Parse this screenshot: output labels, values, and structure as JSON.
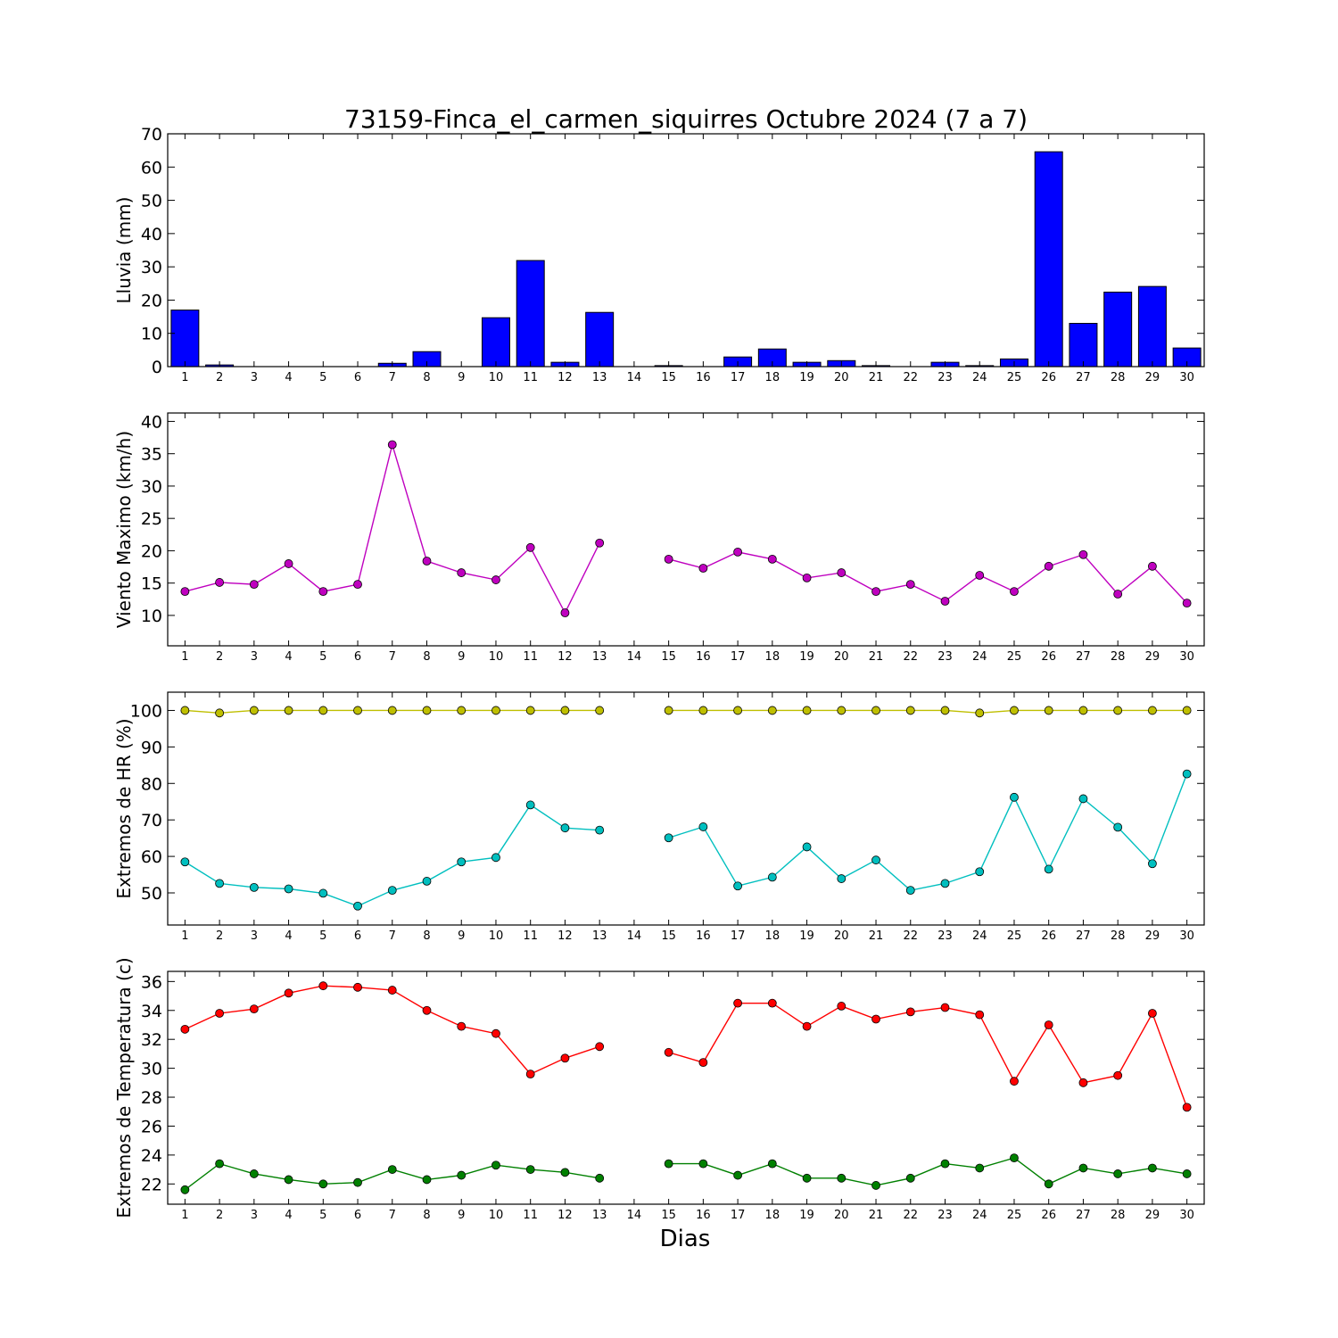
{
  "figure": {
    "title": "73159-Finca_el_carmen_siquirres Octubre 2024  (7 a 7)",
    "xlabel": "Dias"
  },
  "chart_data": [
    {
      "type": "bar",
      "ylabel": "Lluvia (mm)",
      "ylim": [
        0,
        70
      ],
      "yticks": [
        0,
        10,
        20,
        30,
        40,
        50,
        60,
        70
      ],
      "categories": [
        1,
        2,
        3,
        4,
        5,
        6,
        7,
        8,
        9,
        10,
        11,
        12,
        13,
        14,
        15,
        16,
        17,
        18,
        19,
        20,
        21,
        22,
        23,
        24,
        25,
        26,
        27,
        28,
        29,
        30
      ],
      "values": [
        17.0,
        0.5,
        0,
        0,
        0,
        0,
        1.0,
        4.5,
        0,
        14.7,
        31.9,
        1.3,
        16.3,
        0,
        0.3,
        0,
        2.9,
        5.3,
        1.3,
        1.8,
        0.3,
        0,
        1.3,
        0.3,
        2.3,
        64.6,
        13.0,
        22.4,
        24.1,
        5.6
      ],
      "color": "#0000ff",
      "grid": false
    },
    {
      "type": "line",
      "ylabel": "Viento Maximo (km/h)",
      "ylim": [
        5.3,
        41.3
      ],
      "yticks": [
        10,
        15,
        20,
        25,
        30,
        35,
        40
      ],
      "x": [
        1,
        2,
        3,
        4,
        5,
        6,
        7,
        8,
        9,
        10,
        11,
        12,
        13,
        14,
        15,
        16,
        17,
        18,
        19,
        20,
        21,
        22,
        23,
        24,
        25,
        26,
        27,
        28,
        29,
        30
      ],
      "series": [
        {
          "color": "#bf00bf",
          "values": [
            13.7,
            15.1,
            14.8,
            18.0,
            13.7,
            14.8,
            36.4,
            18.4,
            16.6,
            15.5,
            20.5,
            10.4,
            21.2,
            null,
            18.7,
            17.3,
            19.8,
            18.7,
            15.8,
            16.6,
            13.7,
            14.8,
            12.2,
            16.2,
            13.7,
            17.6,
            19.4,
            13.3,
            17.6,
            11.9
          ]
        }
      ]
    },
    {
      "type": "line",
      "ylabel": "Extremos de HR (%)",
      "ylim": [
        41.2,
        105
      ],
      "yticks": [
        50,
        60,
        70,
        80,
        90,
        100
      ],
      "x": [
        1,
        2,
        3,
        4,
        5,
        6,
        7,
        8,
        9,
        10,
        11,
        12,
        13,
        14,
        15,
        16,
        17,
        18,
        19,
        20,
        21,
        22,
        23,
        24,
        25,
        26,
        27,
        28,
        29,
        30
      ],
      "series": [
        {
          "color": "#bfbf00",
          "values": [
            100,
            99.3,
            100,
            100,
            100,
            100,
            100,
            100,
            100,
            100,
            100,
            100,
            100,
            null,
            100,
            100,
            100,
            100,
            100,
            100,
            100,
            100,
            100,
            99.3,
            100,
            100,
            100,
            100,
            100,
            100
          ]
        },
        {
          "color": "#00bfbf",
          "values": [
            58.5,
            52.6,
            51.5,
            51.1,
            49.9,
            46.4,
            50.7,
            53.2,
            58.5,
            59.7,
            74.1,
            67.8,
            67.2,
            null,
            65.1,
            68.1,
            51.9,
            54.3,
            62.6,
            53.9,
            59.0,
            50.7,
            52.6,
            55.8,
            76.2,
            56.5,
            75.8,
            68.0,
            58.0,
            82.6
          ]
        }
      ]
    },
    {
      "type": "line",
      "ylabel": "Extremos de Temperatura (c)",
      "ylim": [
        20.6,
        36.7
      ],
      "yticks": [
        22,
        24,
        26,
        28,
        30,
        32,
        34,
        36
      ],
      "x": [
        1,
        2,
        3,
        4,
        5,
        6,
        7,
        8,
        9,
        10,
        11,
        12,
        13,
        14,
        15,
        16,
        17,
        18,
        19,
        20,
        21,
        22,
        23,
        24,
        25,
        26,
        27,
        28,
        29,
        30
      ],
      "series": [
        {
          "color": "#ff0000",
          "values": [
            32.7,
            33.8,
            34.1,
            35.2,
            35.7,
            35.6,
            35.4,
            34.0,
            32.9,
            32.4,
            29.6,
            30.7,
            31.5,
            null,
            31.1,
            30.4,
            34.5,
            34.5,
            32.9,
            34.3,
            33.4,
            33.9,
            34.2,
            33.7,
            29.1,
            33.0,
            29.0,
            29.5,
            33.8,
            27.3
          ]
        },
        {
          "color": "#008000",
          "values": [
            21.6,
            23.4,
            22.7,
            22.3,
            22.0,
            22.1,
            23.0,
            22.3,
            22.6,
            23.3,
            23.0,
            22.8,
            22.4,
            null,
            23.4,
            23.4,
            22.6,
            23.4,
            22.4,
            22.4,
            21.9,
            22.4,
            23.4,
            23.1,
            23.8,
            22.0,
            23.1,
            22.7,
            23.1,
            22.7
          ]
        }
      ]
    }
  ]
}
